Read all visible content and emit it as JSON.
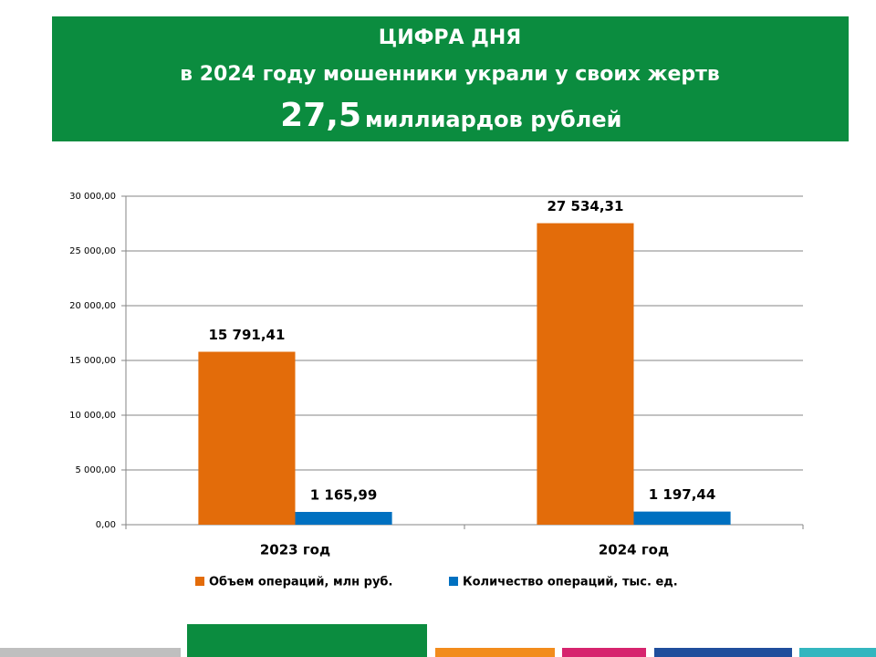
{
  "header": {
    "line1": "ЦИФРА ДНЯ",
    "line2": "в 2024 году мошенники украли у своих жертв",
    "number": "27,5",
    "line3": "миллиардов рублей"
  },
  "chart_data": {
    "type": "bar",
    "categories": [
      "2023 год",
      "2024 год"
    ],
    "series": [
      {
        "name": "Объем операций, млн руб.",
        "color": "#e36c0a",
        "values": [
          15791.41,
          27534.31
        ],
        "value_labels": [
          "15 791,41",
          "27 534,31"
        ]
      },
      {
        "name": "Количество операций, тыс. ед.",
        "color": "#0070c0",
        "values": [
          1165.99,
          1197.44
        ],
        "value_labels": [
          "1 165,99",
          "1 197,44"
        ]
      }
    ],
    "ylim": [
      0,
      30000
    ],
    "yticks": [
      {
        "value": 0,
        "label": "0,00"
      },
      {
        "value": 5000,
        "label": "5 000,00"
      },
      {
        "value": 10000,
        "label": "10 000,00"
      },
      {
        "value": 15000,
        "label": "15 000,00"
      },
      {
        "value": 20000,
        "label": "20 000,00"
      },
      {
        "value": 25000,
        "label": "25 000,00"
      },
      {
        "value": 30000,
        "label": "30 000,00"
      }
    ],
    "grid": true,
    "legend": "bottom"
  }
}
